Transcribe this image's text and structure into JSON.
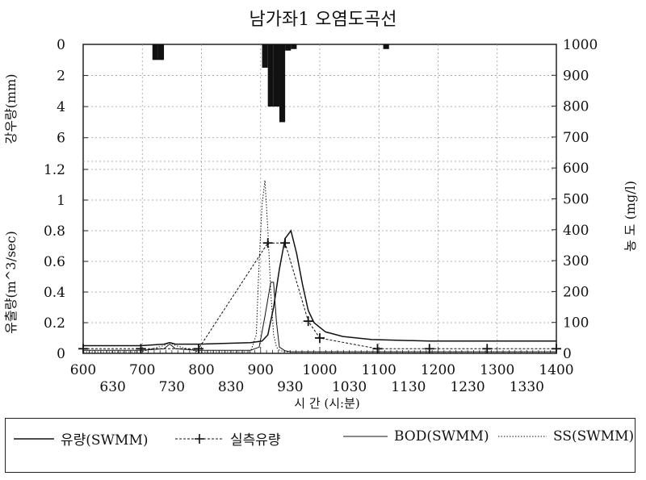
{
  "chart_data": {
    "type": "line",
    "title": "남가좌1  오염도곡선",
    "xlabel": "시  간 (시:분)",
    "x_ticks_row1": [
      "600",
      "700",
      "800",
      "900",
      "1000",
      "1100",
      "1200",
      "1300",
      "1400"
    ],
    "x_ticks_row2": [
      "630",
      "730",
      "830",
      "930",
      "1030",
      "1130",
      "1230",
      "1330"
    ],
    "rain_axis": {
      "label": "강우량(mm)",
      "ticks": [
        "0",
        "2",
        "4",
        "6"
      ],
      "ylim": [
        0,
        7
      ]
    },
    "flow_axis": {
      "label": "유출량(m^3/sec)",
      "ticks": [
        "0",
        "0.2",
        "0.4",
        "0.6",
        "0.8",
        "1",
        "1.2"
      ],
      "ylim": [
        0,
        1.2
      ]
    },
    "conc_axis": {
      "label": "농 도 (mg/l)",
      "ticks": [
        "0",
        "100",
        "200",
        "300",
        "400",
        "500",
        "600",
        "700",
        "800",
        "900",
        "1000"
      ],
      "ylim": [
        0,
        1000
      ]
    },
    "xlim": [
      0,
      820
    ],
    "rainfall": {
      "name": "",
      "x": [
        120,
        130,
        310,
        320,
        330,
        340,
        350,
        360,
        520
      ],
      "values": [
        1.0,
        1.0,
        1.5,
        4.0,
        4.0,
        5.0,
        0.4,
        0.3,
        0.3
      ]
    },
    "series": [
      {
        "name": "유량(SWMM)",
        "axis": "flow",
        "style": "solid",
        "x": [
          0,
          100,
          140,
          150,
          160,
          200,
          290,
          310,
          320,
          330,
          340,
          350,
          360,
          370,
          380,
          390,
          400,
          420,
          450,
          500,
          600,
          820
        ],
        "values": [
          0.05,
          0.05,
          0.06,
          0.07,
          0.06,
          0.06,
          0.07,
          0.08,
          0.12,
          0.3,
          0.55,
          0.75,
          0.8,
          0.65,
          0.45,
          0.28,
          0.2,
          0.14,
          0.11,
          0.09,
          0.08,
          0.08
        ]
      },
      {
        "name": "실측유량",
        "axis": "flow",
        "style": "plus",
        "x": [
          0,
          100,
          200,
          320,
          350,
          390,
          410,
          510,
          600,
          700,
          820
        ],
        "values": [
          0.03,
          0.03,
          0.03,
          0.72,
          0.72,
          0.21,
          0.1,
          0.03,
          0.03,
          0.03,
          0.03
        ]
      },
      {
        "name": "BOD(SWMM)",
        "axis": "conc",
        "style": "solid-thin",
        "x": [
          0,
          100,
          140,
          150,
          160,
          200,
          290,
          305,
          315,
          325,
          330,
          335,
          340,
          350,
          360,
          820
        ],
        "values": [
          10,
          10,
          15,
          30,
          15,
          10,
          10,
          20,
          120,
          230,
          230,
          100,
          20,
          8,
          5,
          5
        ]
      },
      {
        "name": "SS(SWMM)",
        "axis": "conc",
        "style": "dotted",
        "x": [
          0,
          100,
          140,
          150,
          160,
          200,
          290,
          300,
          305,
          310,
          315,
          320,
          325,
          330,
          335,
          340,
          350,
          820
        ],
        "values": [
          5,
          5,
          25,
          35,
          25,
          5,
          5,
          60,
          300,
          480,
          560,
          400,
          200,
          60,
          20,
          10,
          5,
          5
        ]
      }
    ],
    "grid": true
  }
}
